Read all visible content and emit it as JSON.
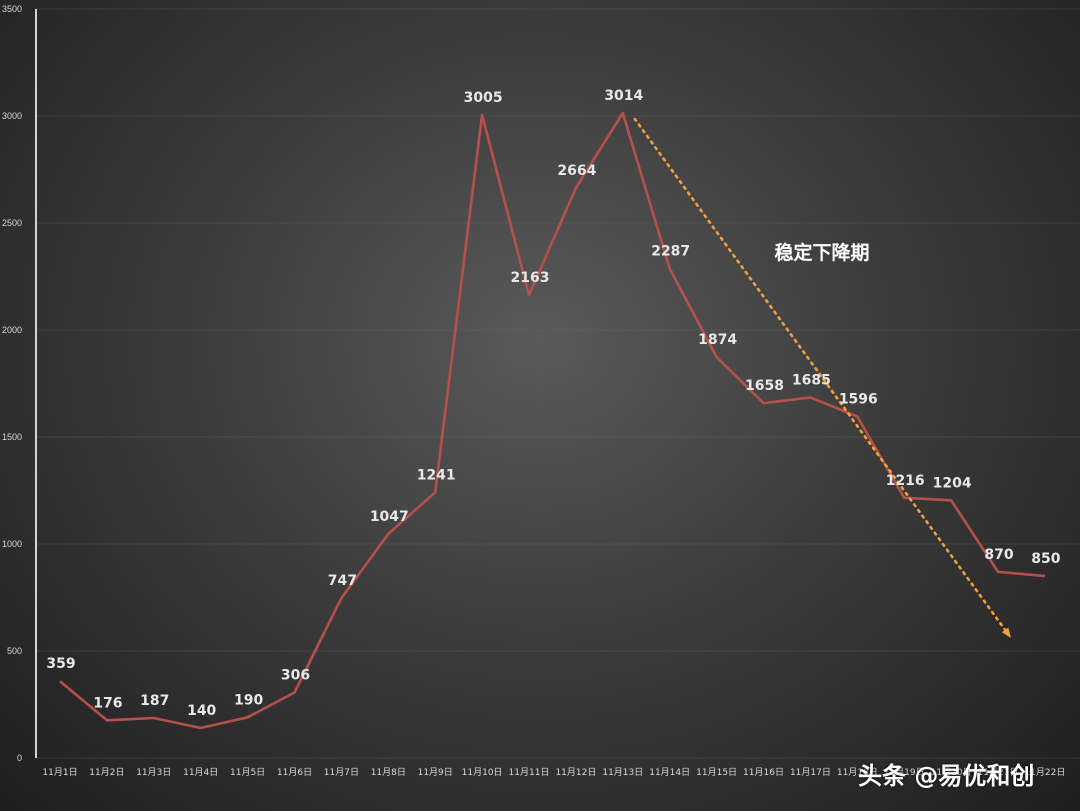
{
  "chart_data": {
    "type": "line",
    "title": "",
    "xlabel": "",
    "ylabel": "",
    "ylim": [
      0,
      3500
    ],
    "yticks": [
      0,
      500,
      1000,
      1500,
      2000,
      2500,
      3000,
      3500
    ],
    "grid": true,
    "categories": [
      "11月1日",
      "11月2日",
      "11月3日",
      "11月4日",
      "11月5日",
      "11月6日",
      "11月7日",
      "11月8日",
      "11月9日",
      "11月10日",
      "11月11日",
      "11月12日",
      "11月13日",
      "11月14日",
      "11月15日",
      "11月16日",
      "11月17日",
      "11月18日",
      "11月19日",
      "11月20日",
      "11月21日",
      "11月22日"
    ],
    "series": [
      {
        "name": "",
        "values": [
          359,
          176,
          187,
          140,
          190,
          306,
          747,
          1047,
          1241,
          3005,
          2163,
          2664,
          3014,
          2287,
          1874,
          1658,
          1685,
          1596,
          1216,
          1204,
          870,
          850
        ]
      }
    ],
    "annotations": [
      {
        "text": "稳定下降期",
        "type": "dotted-arrow",
        "from": [
          "11月13日",
          3014
        ],
        "to": [
          "11月21日",
          580
        ]
      }
    ]
  },
  "colors": {
    "line": "#b5504b",
    "arrow": "#f0a040"
  },
  "watermark": "头条 @易优和创"
}
